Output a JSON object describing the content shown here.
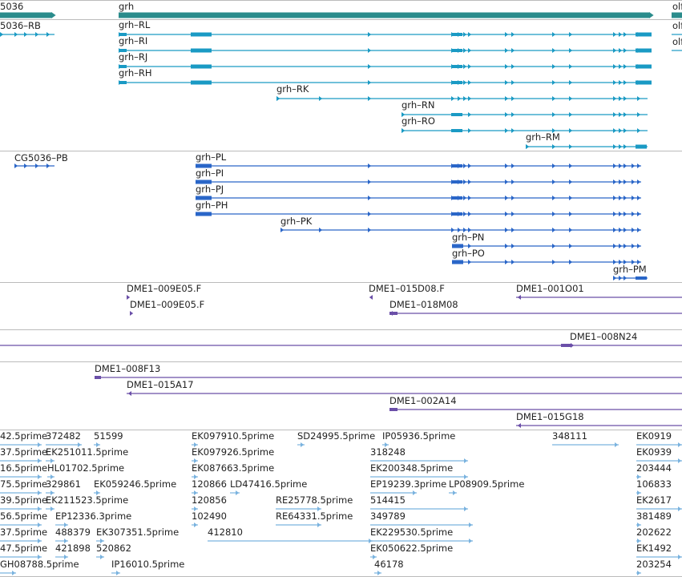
{
  "colors": {
    "gene_bar": "#2b8c8c",
    "transcript": "#1a9ac4",
    "protein": "#2a66c8",
    "clone": "#6b4fa8",
    "est": "#7ab3df",
    "separator": "#bbbbbb"
  },
  "genes": [
    {
      "label": "5036"
    },
    {
      "label": "grh"
    },
    {
      "label": "olf"
    }
  ],
  "transcripts": [
    {
      "label": "5036–RB"
    },
    {
      "label": "grh–RL"
    },
    {
      "label": "grh–RI"
    },
    {
      "label": "grh–RJ"
    },
    {
      "label": "grh–RH"
    },
    {
      "label": "grh–RK"
    },
    {
      "label": "grh–RN"
    },
    {
      "label": "grh–RO"
    },
    {
      "label": "grh–RM"
    },
    {
      "label": "olf"
    },
    {
      "label": "olf"
    }
  ],
  "proteins": [
    {
      "label": "CG5036–PB"
    },
    {
      "label": "grh–PL"
    },
    {
      "label": "grh–PI"
    },
    {
      "label": "grh–PJ"
    },
    {
      "label": "grh–PH"
    },
    {
      "label": "grh–PK"
    },
    {
      "label": "grh–PN"
    },
    {
      "label": "grh–PO"
    },
    {
      "label": "grh–PM"
    }
  ],
  "clones": [
    {
      "label": "DME1–009E05.F"
    },
    {
      "label": "DME1–009E05.F"
    },
    {
      "label": "DME1–015D08.F"
    },
    {
      "label": "DME1–018M08"
    },
    {
      "label": "DME1–001O01"
    },
    {
      "label": "DME1–008N24"
    },
    {
      "label": "DME1–008F13"
    },
    {
      "label": "DME1–015A17"
    },
    {
      "label": "DME1–002A14"
    },
    {
      "label": "DME1–015G18"
    }
  ],
  "ests": [
    {
      "label": "42.5prime"
    },
    {
      "label": "372482"
    },
    {
      "label": "51599"
    },
    {
      "label": "EK097910.5prime"
    },
    {
      "label": "SD24995.5prime"
    },
    {
      "label": "IP05936.5prime"
    },
    {
      "label": "348111"
    },
    {
      "label": "EK0919"
    },
    {
      "label": "37.5prime"
    },
    {
      "label": "EK251011.5prime"
    },
    {
      "label": "EK097926.5prime"
    },
    {
      "label": "318248"
    },
    {
      "label": "EK0939"
    },
    {
      "label": "16.5prime"
    },
    {
      "label": "HL01702.5prime"
    },
    {
      "label": "EK087663.5prime"
    },
    {
      "label": "EK200348.5prime"
    },
    {
      "label": "203444"
    },
    {
      "label": "75.5prime"
    },
    {
      "label": "329861"
    },
    {
      "label": "EK059246.5prime"
    },
    {
      "label": "120866"
    },
    {
      "label": "LD47416.5prime"
    },
    {
      "label": "EP19239.3prime"
    },
    {
      "label": "LP08909.5prime"
    },
    {
      "label": "106833"
    },
    {
      "label": "39.5prime"
    },
    {
      "label": "EK211523.5prime"
    },
    {
      "label": "120856"
    },
    {
      "label": "RE25778.5prime"
    },
    {
      "label": "514415"
    },
    {
      "label": "EK2617"
    },
    {
      "label": "56.5prime"
    },
    {
      "label": "EP12336.3prime"
    },
    {
      "label": "102490"
    },
    {
      "label": "RE64331.5prime"
    },
    {
      "label": "349789"
    },
    {
      "label": "381489"
    },
    {
      "label": "37.5prime"
    },
    {
      "label": "488379"
    },
    {
      "label": "EK307351.5prime"
    },
    {
      "label": "412810"
    },
    {
      "label": "EK229530.5prime"
    },
    {
      "label": "202622"
    },
    {
      "label": "47.5prime"
    },
    {
      "label": "421898"
    },
    {
      "label": "520862"
    },
    {
      "label": "EK050622.5prime"
    },
    {
      "label": "EK1492"
    },
    {
      "label": "GH08788.5prime"
    },
    {
      "label": "IP16010.5prime"
    },
    {
      "label": "46178"
    },
    {
      "label": "203254"
    }
  ]
}
